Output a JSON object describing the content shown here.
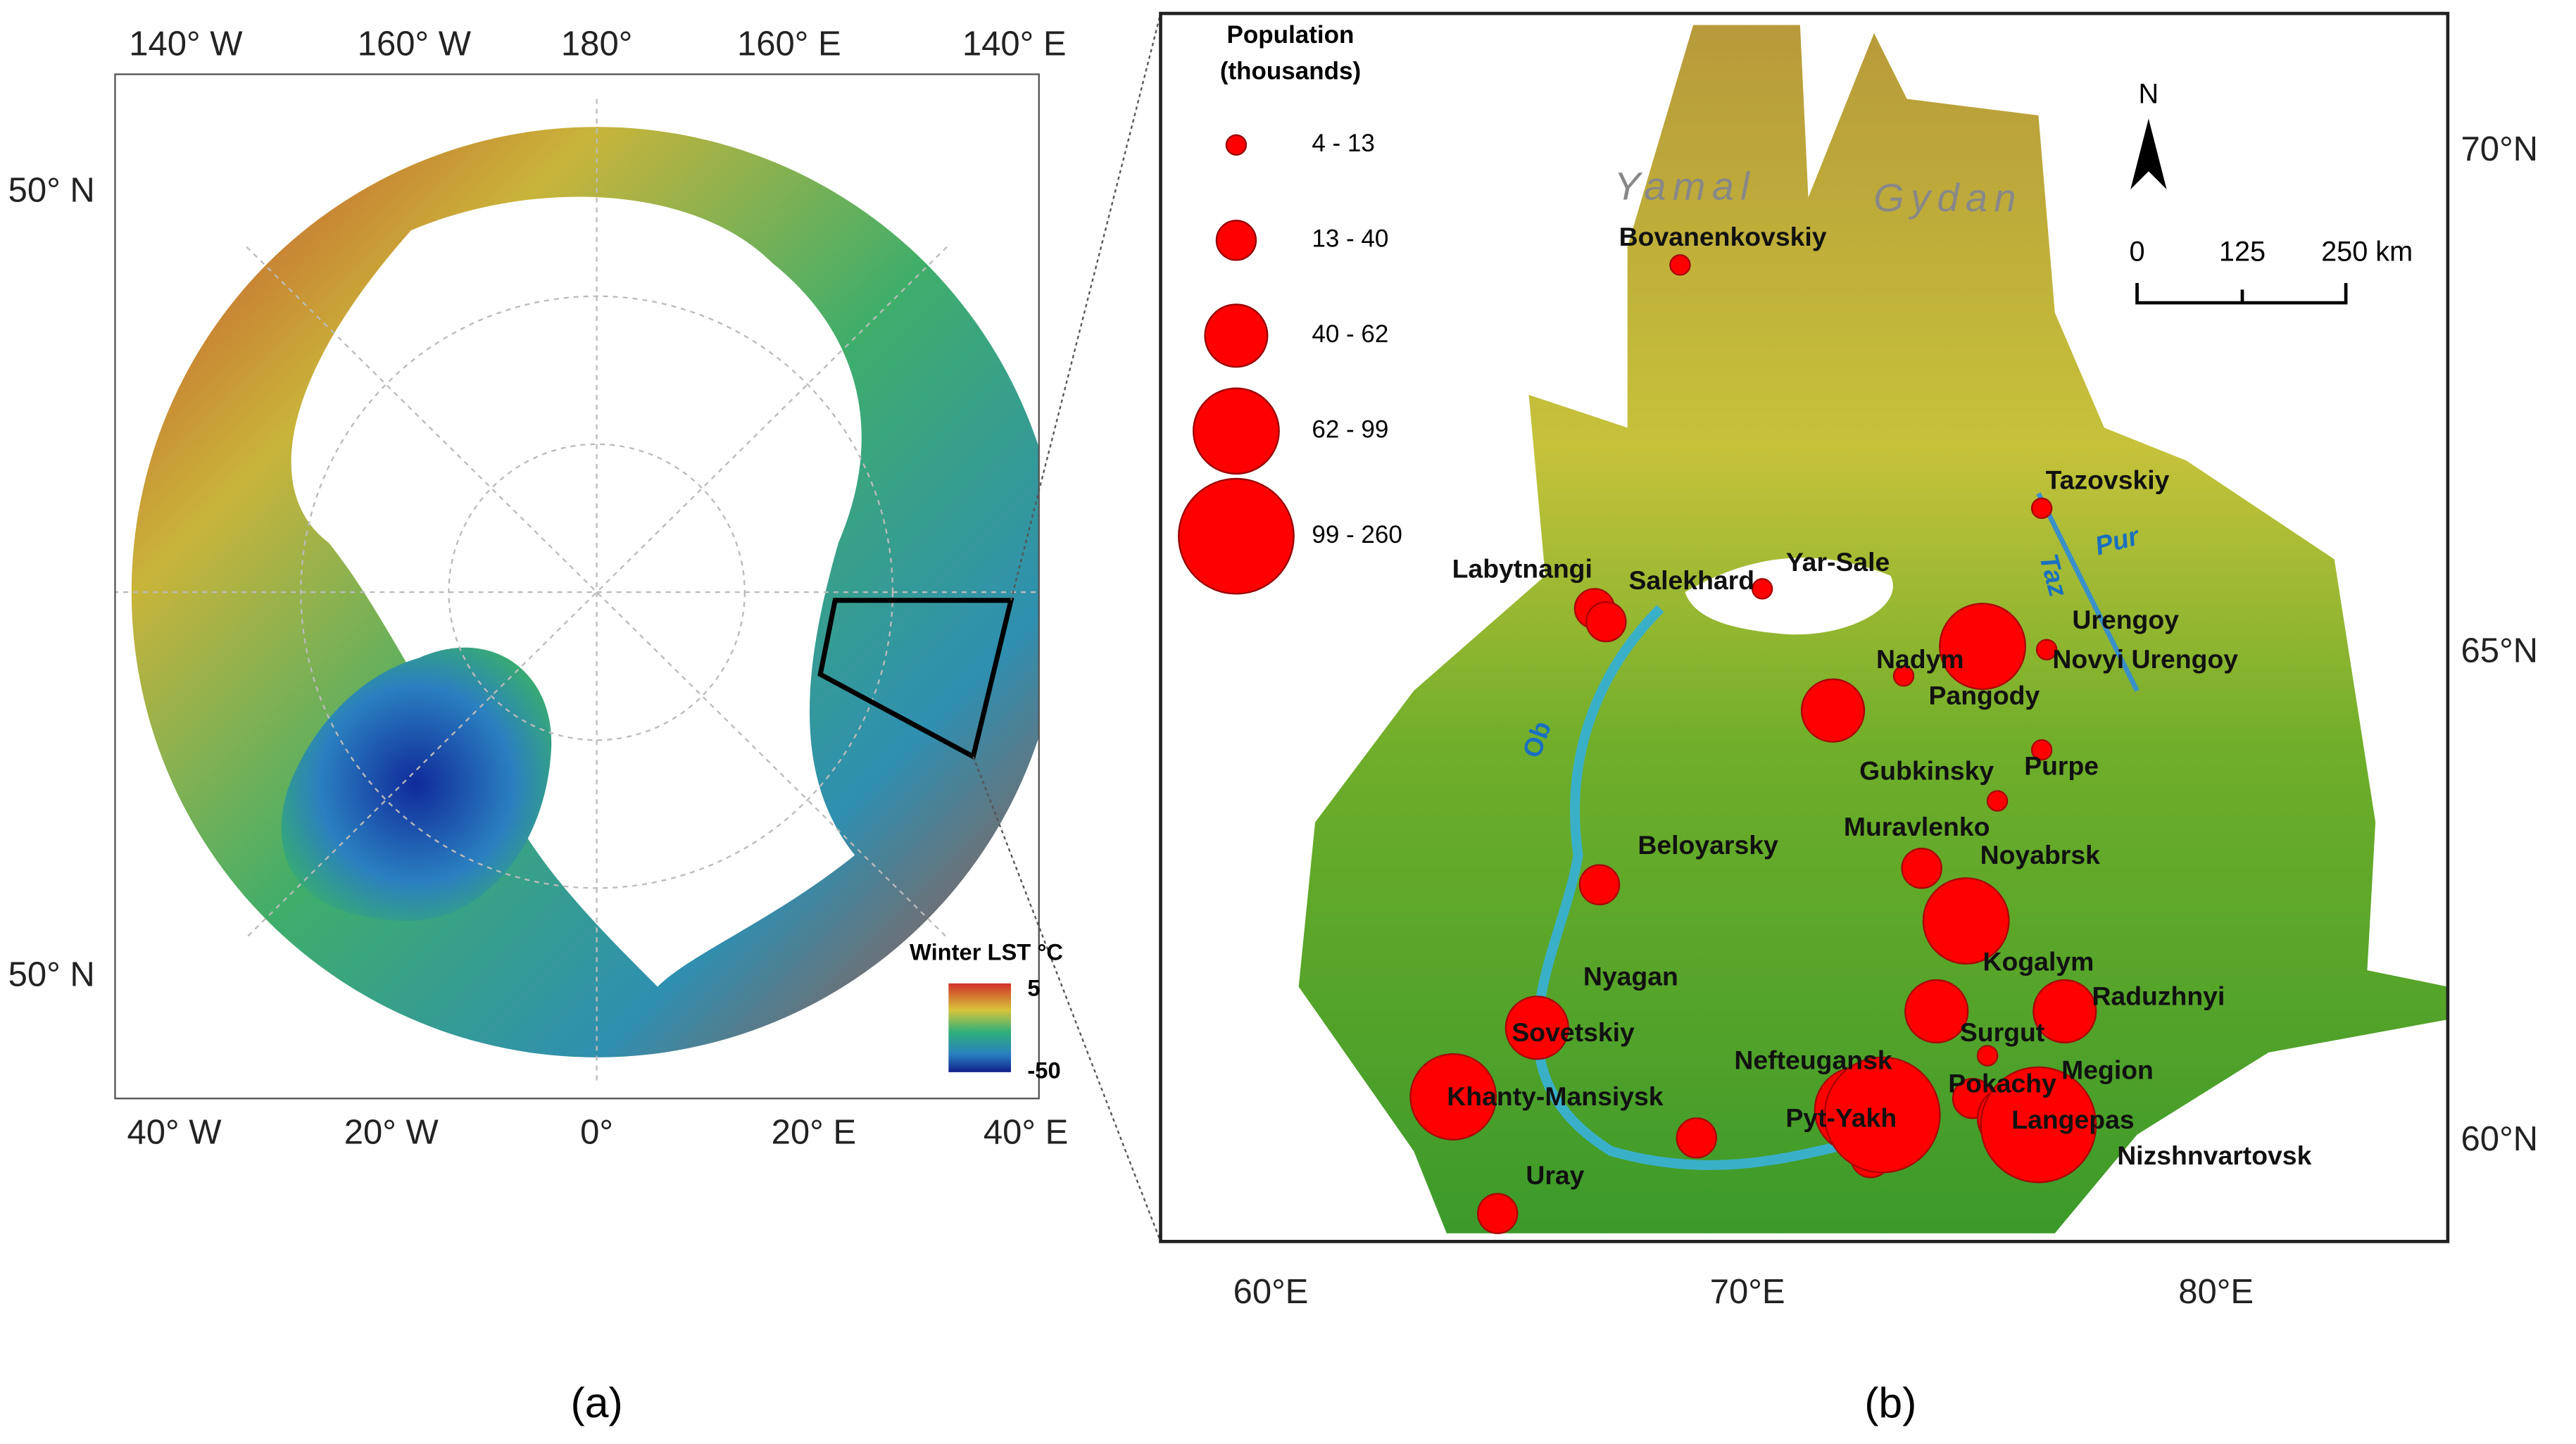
{
  "panel_a": {
    "label": "(a)",
    "top_longitudes": [
      "140° W",
      "160° W",
      "180°",
      "160° E",
      "140° E"
    ],
    "bottom_longitudes": [
      "40° W",
      "20° W",
      "0°",
      "20° E",
      "40° E"
    ],
    "latitudes": [
      "50° N",
      "50° N"
    ],
    "legend": {
      "title": "Winter LST °C",
      "max": 5,
      "min": -50
    }
  },
  "panel_b": {
    "label": "(b)",
    "legend": {
      "title": [
        "Population",
        "(thousands)"
      ],
      "classes": [
        {
          "label": "4 - 13",
          "cities": [
            "Bovanenkovskiy",
            "Tazovskiy",
            "Yar-Sale",
            "Urengoy",
            "Nadym",
            "Gubkinsky",
            "Purpe",
            "Pokachy"
          ]
        },
        {
          "label": "13 - 40",
          "cities": [
            "Labytnangi",
            "Salekhard",
            "Muravlenko",
            "Beloyarsky",
            "Megion",
            "Pyt-Yakh",
            "Uray",
            "Nyagan"
          ]
        },
        {
          "label": "40 - 62",
          "cities": [
            "Pangody",
            "Kogalym",
            "Raduzhnyi",
            "Sovetskiy",
            "Langepas"
          ]
        },
        {
          "label": "62 - 99",
          "cities": [
            "Novyi Urengoy",
            "Noyabrsk",
            "Khanty-Mansiysk",
            "Nefteugansk"
          ]
        },
        {
          "label": "99 - 260",
          "cities": [
            "Surgut",
            "Nizshnvartovsk"
          ]
        }
      ]
    },
    "regions": [
      "Yamal",
      "Gydan"
    ],
    "rivers": [
      "Ob",
      "Pur",
      "Taz"
    ],
    "north": "N",
    "scale": [
      "0",
      "125",
      "250 km"
    ],
    "latitudes": [
      "70°N",
      "65°N",
      "60°N"
    ],
    "longitudes": [
      "60°E",
      "70°E",
      "80°E"
    ]
  }
}
